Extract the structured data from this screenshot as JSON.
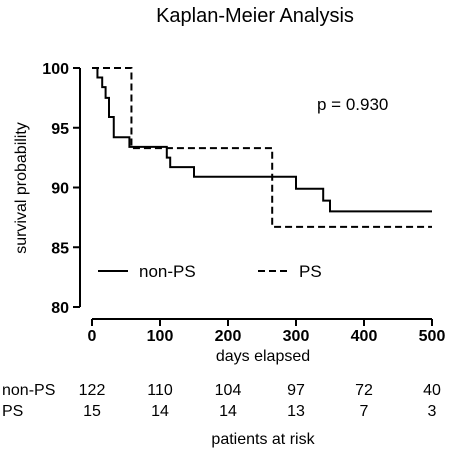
{
  "chart_data": {
    "type": "line",
    "title": "Kaplan-Meier Analysis",
    "xlabel": "days elapsed",
    "ylabel": "survival probability",
    "xlim": [
      0,
      500
    ],
    "ylim": [
      80,
      100
    ],
    "x_ticks": [
      0,
      100,
      200,
      300,
      400,
      500
    ],
    "y_ticks": [
      80,
      85,
      90,
      95,
      100
    ],
    "grid": false,
    "legend_position": "bottom-left",
    "annotation": "p = 0.930",
    "series": [
      {
        "name": "non-PS",
        "line_style": "solid",
        "color": "#000000",
        "steps": [
          [
            0,
            100
          ],
          [
            8,
            99.2
          ],
          [
            15,
            98.4
          ],
          [
            20,
            97.5
          ],
          [
            25,
            95.9
          ],
          [
            32,
            94.2
          ],
          [
            55,
            93.4
          ],
          [
            110,
            92.5
          ],
          [
            115,
            91.7
          ],
          [
            150,
            90.9
          ],
          [
            300,
            89.9
          ],
          [
            340,
            88.9
          ],
          [
            350,
            88.0
          ],
          [
            500,
            88.0
          ]
        ]
      },
      {
        "name": "PS",
        "line_style": "dashed",
        "color": "#000000",
        "steps": [
          [
            0,
            100
          ],
          [
            58,
            93.3
          ],
          [
            265,
            86.7
          ],
          [
            500,
            86.7
          ]
        ]
      }
    ],
    "risk_table": {
      "title": "patients at risk",
      "rows": [
        {
          "label": "non-PS",
          "values": [
            "122",
            "110",
            "104",
            "97",
            "72",
            "40"
          ]
        },
        {
          "label": "PS",
          "values": [
            "15",
            "14",
            "14",
            "13",
            "7",
            "3"
          ]
        }
      ]
    }
  }
}
